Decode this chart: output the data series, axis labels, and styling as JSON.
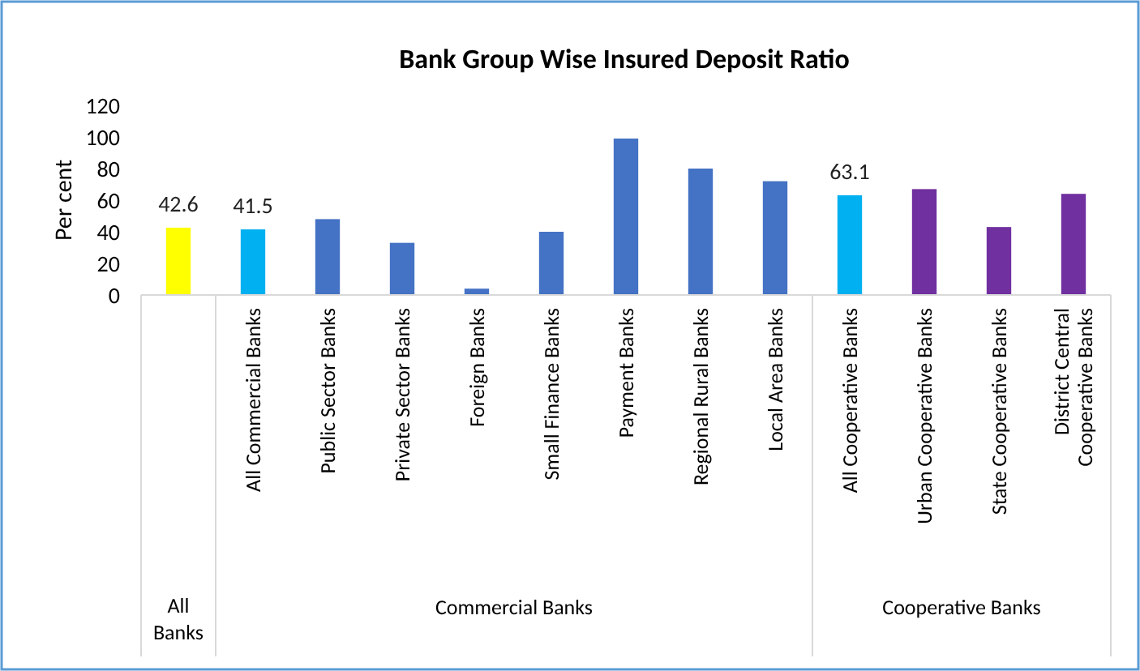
{
  "chart_data": {
    "type": "bar",
    "title": "Bank Group Wise Insured Deposit Ratio",
    "ylabel": "Per cent",
    "categories": [
      null,
      "All Commercial Banks",
      "Public Sector Banks",
      "Private Sector Banks",
      "Foreign Banks",
      "Small Finance Banks",
      "Payment Banks",
      "Regional Rural Banks",
      "Local Area Banks",
      "All Cooperative Banks",
      "Urban Cooperative Banks",
      "State Cooperative Banks",
      "District Central Cooperative Banks"
    ],
    "values": [
      42.6,
      41.5,
      48,
      33,
      4,
      40,
      99,
      80,
      72,
      63.1,
      67,
      43,
      64
    ],
    "colors": [
      "#ffff00",
      "#00b0f0",
      "#4472c4",
      "#4472c4",
      "#4472c4",
      "#4472c4",
      "#4472c4",
      "#4472c4",
      "#4472c4",
      "#00b0f0",
      "#7030a0",
      "#7030a0",
      "#7030a0"
    ],
    "value_labels": [
      "42.6",
      "41.5",
      null,
      null,
      null,
      null,
      null,
      null,
      null,
      "63.1",
      null,
      null,
      null
    ],
    "ylim": [
      0,
      120
    ],
    "yticks": [
      0,
      20,
      40,
      60,
      80,
      100,
      120
    ],
    "annotations": [
      "All Banks",
      "Commercial Banks",
      "Cooperative Banks"
    ]
  }
}
